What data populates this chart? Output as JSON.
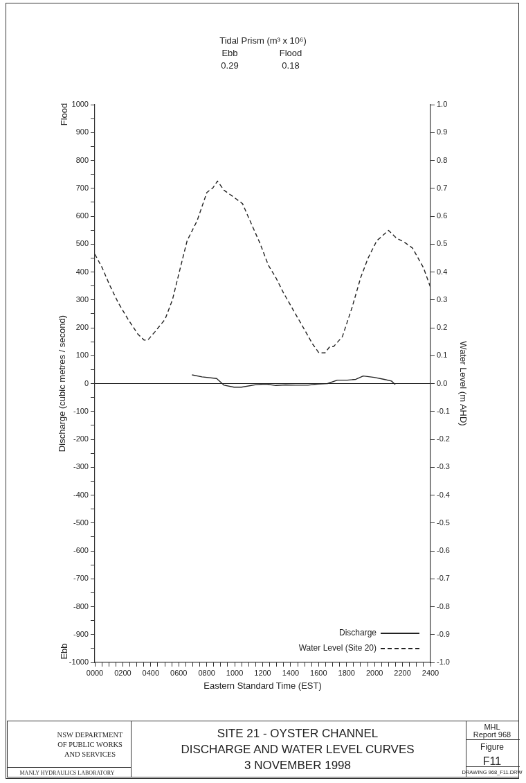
{
  "chart_data": {
    "type": "line",
    "title": "SITE 21 - OYSTER CHANNEL",
    "subtitle": "DISCHARGE AND WATER LEVEL CURVES",
    "xlabel": "Eastern Standard Time (EST)",
    "ylabel": "Discharge (cubic metres / second)",
    "y2label": "Water Level (m AHD)",
    "annotations": [
      "Tidal Prism (m³ x 10⁶)",
      "Ebb",
      "Flood",
      "0.29",
      "0.18",
      "Flood",
      "Ebb",
      "3 NOVEMBER 1998",
      "NSW DEPARTMENT",
      "OF PUBLIC WORKS",
      "AND SERVICES",
      "MANLY HYDRAULICS LABORATORY",
      "MHL",
      "Report 968",
      "Figure",
      "F11",
      "DRAWING 968_F11.DRW"
    ],
    "series": [
      {
        "name": "Discharge",
        "color": "#222222",
        "line_style": "solid",
        "x": [
          695,
          766,
          871,
          924,
          995,
          1048,
          1153,
          1224,
          1294,
          1364,
          1435,
          1523,
          1593,
          1664,
          1734,
          1805,
          1866,
          1919,
          1998,
          2069,
          2121,
          2148
        ],
        "values": [
          31,
          24,
          18,
          -6,
          -13,
          -13,
          -4,
          -2,
          -7,
          -5,
          -6,
          -6,
          -2,
          0,
          12,
          12,
          15,
          27,
          22,
          15,
          9,
          -4
        ]
      },
      {
        "name": "Water Level (Site 20)",
        "color": "#222222",
        "line_style": "dashed",
        "axis": "y2",
        "x": [
          0,
          53,
          106,
          167,
          238,
          308,
          352,
          379,
          431,
          458,
          502,
          555,
          607,
          660,
          731,
          801,
          845,
          877,
          924,
          986,
          1056,
          1118,
          1180,
          1241,
          1294,
          1347,
          1417,
          1488,
          1558,
          1602,
          1646,
          1681,
          1708,
          1770,
          1840,
          1901,
          1954,
          2016,
          2100,
          2157,
          2210,
          2271,
          2350,
          2400
        ],
        "values": [
          0.464,
          0.415,
          0.353,
          0.29,
          0.23,
          0.177,
          0.156,
          0.156,
          0.186,
          0.203,
          0.23,
          0.3,
          0.406,
          0.512,
          0.583,
          0.685,
          0.702,
          0.726,
          0.693,
          0.671,
          0.645,
          0.574,
          0.504,
          0.424,
          0.38,
          0.327,
          0.265,
          0.203,
          0.141,
          0.11,
          0.11,
          0.133,
          0.133,
          0.168,
          0.274,
          0.38,
          0.45,
          0.512,
          0.549,
          0.521,
          0.508,
          0.486,
          0.415,
          0.345
        ]
      }
    ],
    "xlim": [
      0,
      2400
    ],
    "xticks": [
      {
        "value": 0,
        "label": "0000"
      },
      {
        "value": 50,
        "label": null
      },
      {
        "value": 100,
        "label": null
      },
      {
        "value": 150,
        "label": null
      },
      {
        "value": 200,
        "label": "0200"
      },
      {
        "value": 250,
        "label": null
      },
      {
        "value": 300,
        "label": null
      },
      {
        "value": 350,
        "label": null
      },
      {
        "value": 400,
        "label": "0400"
      },
      {
        "value": 450,
        "label": null
      },
      {
        "value": 500,
        "label": null
      },
      {
        "value": 550,
        "label": null
      },
      {
        "value": 600,
        "label": "0600"
      },
      {
        "value": 650,
        "label": null
      },
      {
        "value": 700,
        "label": null
      },
      {
        "value": 750,
        "label": null
      },
      {
        "value": 800,
        "label": "0800"
      },
      {
        "value": 850,
        "label": null
      },
      {
        "value": 900,
        "label": null
      },
      {
        "value": 950,
        "label": null
      },
      1000,
      {
        "value": 1050,
        "label": null
      },
      {
        "value": 1100,
        "label": null
      },
      {
        "value": 1150,
        "label": null
      },
      1200,
      {
        "value": 1250,
        "label": null
      },
      {
        "value": 1300,
        "label": null
      },
      {
        "value": 1350,
        "label": null
      },
      1400,
      {
        "value": 1450,
        "label": null
      },
      {
        "value": 1500,
        "label": null
      },
      {
        "value": 1550,
        "label": null
      },
      1600,
      {
        "value": 1650,
        "label": null
      },
      {
        "value": 1700,
        "label": null
      },
      {
        "value": 1750,
        "label": null
      },
      1800,
      {
        "value": 1850,
        "label": null
      },
      {
        "value": 1900,
        "label": null
      },
      {
        "value": 1950,
        "label": null
      },
      2000,
      {
        "value": 2050,
        "label": null
      },
      {
        "value": 2100,
        "label": null
      },
      {
        "value": 2150,
        "label": null
      },
      2200,
      {
        "value": 2250,
        "label": null
      },
      {
        "value": 2300,
        "label": null
      },
      {
        "value": 2350,
        "label": null
      },
      2400
    ],
    "ylim": [
      -1000,
      1000
    ],
    "yticks": [
      -1000,
      {
        "value": -950,
        "label": null
      },
      -900,
      {
        "value": -850,
        "label": null
      },
      -800,
      {
        "value": -750,
        "label": null
      },
      -700,
      {
        "value": -650,
        "label": null
      },
      -600,
      {
        "value": -550,
        "label": null
      },
      -500,
      {
        "value": -450,
        "label": null
      },
      -400,
      {
        "value": -350,
        "label": null
      },
      -300,
      {
        "value": -250,
        "label": null
      },
      -200,
      {
        "value": -150,
        "label": null
      },
      -100,
      {
        "value": -50,
        "label": null
      },
      0,
      {
        "value": 50,
        "label": null
      },
      100,
      {
        "value": 150,
        "label": null
      },
      200,
      {
        "value": 250,
        "label": null
      },
      300,
      {
        "value": 350,
        "label": null
      },
      400,
      {
        "value": 450,
        "label": null
      },
      500,
      {
        "value": 550,
        "label": null
      },
      600,
      {
        "value": 650,
        "label": null
      },
      700,
      {
        "value": 750,
        "label": null
      },
      800,
      {
        "value": 850,
        "label": null
      },
      900,
      {
        "value": 950,
        "label": null
      },
      1000
    ],
    "y2lim": [
      -1,
      1
    ],
    "y2ticks": [
      {
        "value": -1,
        "label": "-1.0"
      },
      -0.9,
      -0.8,
      -0.7,
      -0.6,
      -0.5,
      -0.4,
      -0.3,
      -0.2,
      -0.1,
      {
        "value": 0,
        "label": "0.0"
      },
      0.1,
      0.2,
      0.3,
      0.4,
      0.5,
      0.6,
      0.7,
      0.8,
      0.9,
      {
        "value": 1,
        "label": "1.0"
      }
    ],
    "ref_lines": [
      {
        "axis": "y",
        "value": 0,
        "color": "#222222"
      }
    ],
    "grid": false,
    "legend": "bottom right",
    "marker": "none"
  }
}
